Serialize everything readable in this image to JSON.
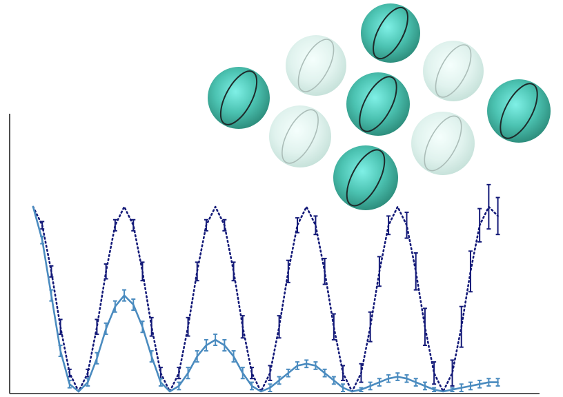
{
  "chart_data": {
    "type": "line",
    "title": "",
    "xlabel": "",
    "ylabel": "",
    "xlim": [
      0,
      5.3
    ],
    "ylim": [
      0,
      1
    ],
    "grid": false,
    "legend": "none",
    "series": [
      {
        "style": "dotted-with-errorbars",
        "color": "#141a78",
        "x": [
          0,
          0.1,
          0.2,
          0.3,
          0.4,
          0.5,
          0.6,
          0.7,
          0.8,
          0.9,
          1.0,
          1.1,
          1.2,
          1.3,
          1.4,
          1.5,
          1.6,
          1.7,
          1.8,
          1.9,
          2.0,
          2.1,
          2.2,
          2.3,
          2.4,
          2.5,
          2.6,
          2.7,
          2.8,
          2.9,
          3.0,
          3.1,
          3.2,
          3.3,
          3.4,
          3.5,
          3.6,
          3.7,
          3.8,
          3.9,
          4.0,
          4.1,
          4.2,
          4.3,
          4.4,
          4.5,
          4.6,
          4.7,
          4.8,
          4.9,
          5.0,
          5.1
        ],
        "y": [
          1.0,
          0.9,
          0.65,
          0.35,
          0.1,
          0.0,
          0.1,
          0.35,
          0.65,
          0.9,
          1.0,
          0.9,
          0.65,
          0.35,
          0.1,
          0.0,
          0.1,
          0.35,
          0.65,
          0.9,
          1.0,
          0.9,
          0.65,
          0.35,
          0.1,
          0.0,
          0.1,
          0.35,
          0.65,
          0.9,
          1.0,
          0.9,
          0.65,
          0.35,
          0.1,
          0.0,
          0.1,
          0.35,
          0.65,
          0.9,
          1.0,
          0.9,
          0.65,
          0.35,
          0.1,
          0.0,
          0.1,
          0.35,
          0.65,
          0.9,
          1.0,
          0.95
        ],
        "error": [
          0.0,
          0.02,
          0.03,
          0.04,
          0.02,
          0.0,
          0.02,
          0.04,
          0.04,
          0.03,
          0.0,
          0.03,
          0.05,
          0.05,
          0.03,
          0.0,
          0.03,
          0.05,
          0.05,
          0.03,
          0.0,
          0.03,
          0.05,
          0.06,
          0.03,
          0.0,
          0.04,
          0.06,
          0.06,
          0.04,
          0.0,
          0.05,
          0.07,
          0.07,
          0.04,
          0.0,
          0.05,
          0.08,
          0.08,
          0.05,
          0.0,
          0.07,
          0.1,
          0.1,
          0.06,
          0.0,
          0.07,
          0.11,
          0.11,
          0.09,
          0.12,
          0.1
        ]
      },
      {
        "style": "solid-with-errorbars",
        "color": "#4a8bbf",
        "x": [
          0,
          0.1,
          0.2,
          0.3,
          0.4,
          0.5,
          0.6,
          0.7,
          0.8,
          0.9,
          1.0,
          1.1,
          1.2,
          1.3,
          1.4,
          1.5,
          1.6,
          1.7,
          1.8,
          1.9,
          2.0,
          2.1,
          2.2,
          2.3,
          2.4,
          2.5,
          2.6,
          2.7,
          2.8,
          2.9,
          3.0,
          3.1,
          3.2,
          3.3,
          3.4,
          3.5,
          3.6,
          3.7,
          3.8,
          3.9,
          4.0,
          4.1,
          4.2,
          4.3,
          4.4,
          4.5,
          4.6,
          4.7,
          4.8,
          4.9,
          5.0,
          5.1
        ],
        "y": [
          1.0,
          0.82,
          0.52,
          0.22,
          0.04,
          0.0,
          0.05,
          0.18,
          0.34,
          0.46,
          0.52,
          0.47,
          0.35,
          0.19,
          0.05,
          0.0,
          0.03,
          0.1,
          0.19,
          0.25,
          0.28,
          0.25,
          0.19,
          0.1,
          0.03,
          0.0,
          0.02,
          0.06,
          0.1,
          0.14,
          0.15,
          0.14,
          0.1,
          0.06,
          0.02,
          0.0,
          0.01,
          0.03,
          0.05,
          0.07,
          0.08,
          0.07,
          0.05,
          0.03,
          0.01,
          0.0,
          0.01,
          0.02,
          0.03,
          0.04,
          0.05,
          0.05
        ],
        "error": [
          0.0,
          0.02,
          0.03,
          0.03,
          0.02,
          0.0,
          0.02,
          0.03,
          0.03,
          0.03,
          0.03,
          0.03,
          0.03,
          0.03,
          0.02,
          0.0,
          0.02,
          0.03,
          0.03,
          0.03,
          0.03,
          0.03,
          0.03,
          0.03,
          0.02,
          0.0,
          0.02,
          0.02,
          0.02,
          0.02,
          0.02,
          0.02,
          0.02,
          0.02,
          0.02,
          0.0,
          0.01,
          0.02,
          0.02,
          0.02,
          0.02,
          0.02,
          0.02,
          0.02,
          0.01,
          0.0,
          0.01,
          0.02,
          0.02,
          0.02,
          0.02,
          0.02
        ]
      }
    ]
  },
  "illustration": {
    "description_icon": "sphere-lattice-icon",
    "dark_sphere_color": "#4fb8a8",
    "light_sphere_color": "#cfeae4",
    "sphere_ring_color": "#1e2a2a"
  }
}
